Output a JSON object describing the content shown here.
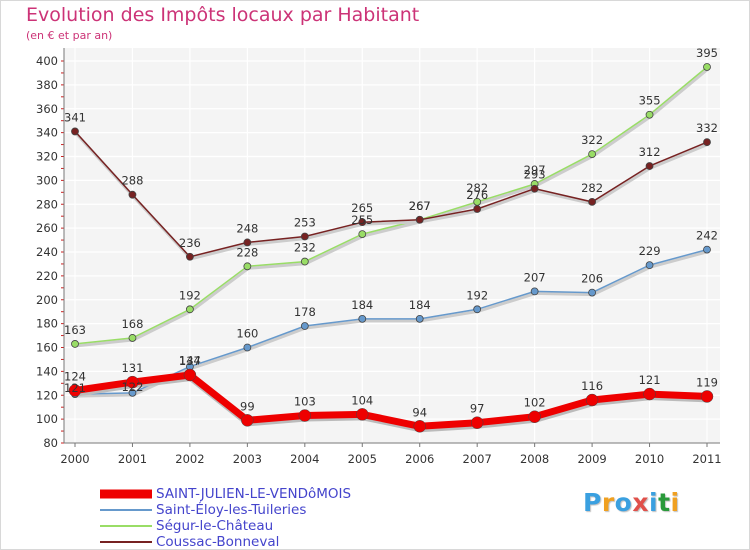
{
  "title": "Evolution des Impôts locaux par Habitant",
  "subtitle": "(en € et par an)",
  "logo": {
    "text": "Proxiti",
    "colors": [
      "#3aa0e0",
      "#f0a020",
      "#3aa0e0",
      "#e0504a",
      "#3aa0e0",
      "#2a9a3a",
      "#f0a020"
    ]
  },
  "chart_data": {
    "type": "line",
    "title": "Evolution des Impôts locaux par Habitant",
    "subtitle": "(en € et par an)",
    "xlabel": "",
    "ylabel": "",
    "x": [
      "2000",
      "2001",
      "2002",
      "2003",
      "2004",
      "2005",
      "2006",
      "2007",
      "2008",
      "2009",
      "2010",
      "2011"
    ],
    "ylim": [
      80,
      400
    ],
    "yticks": [
      80,
      100,
      120,
      140,
      160,
      180,
      200,
      220,
      240,
      260,
      280,
      300,
      320,
      340,
      360,
      380,
      400
    ],
    "grid": true,
    "legend": "bottom-left",
    "series": [
      {
        "name": "Saint-Éloy-les-Tuileries",
        "color": "#6699cc",
        "values": [
          121,
          122,
          144,
          160,
          178,
          184,
          184,
          192,
          207,
          206,
          229,
          242
        ],
        "labels": [
          "",
          "",
          "",
          "160",
          "178",
          "184",
          "184",
          "192",
          "207",
          "206",
          "229",
          "242"
        ]
      },
      {
        "name": "Ségur-le-Château",
        "color": "#99dd66",
        "values": [
          163,
          168,
          192,
          228,
          232,
          255,
          267,
          282,
          297,
          322,
          355,
          395
        ],
        "labels": [
          "163",
          "168",
          "192",
          "228",
          "232",
          "255",
          "267",
          "282",
          "297",
          "322",
          "355",
          "395"
        ]
      },
      {
        "name": "Coussac-Bonneval",
        "color": "#772222",
        "values": [
          341,
          288,
          236,
          248,
          253,
          265,
          267,
          276,
          293,
          282,
          312,
          332
        ],
        "labels": [
          "341",
          "288",
          "236",
          "248",
          "253",
          "265",
          "267",
          "276",
          "293",
          "282",
          "312",
          "332"
        ]
      },
      {
        "name": "SAINT-JULIEN-LE-VENDôMOIS",
        "color": "#ee0000",
        "values": [
          124,
          131,
          137,
          99,
          103,
          104,
          94,
          97,
          102,
          116,
          121,
          119
        ],
        "labels": [
          "124",
          "131",
          "137",
          "99",
          "103",
          "104",
          "94",
          "97",
          "102",
          "116",
          "121",
          "119"
        ]
      }
    ],
    "extra_labels": [
      "121",
      "122",
      "144"
    ]
  }
}
